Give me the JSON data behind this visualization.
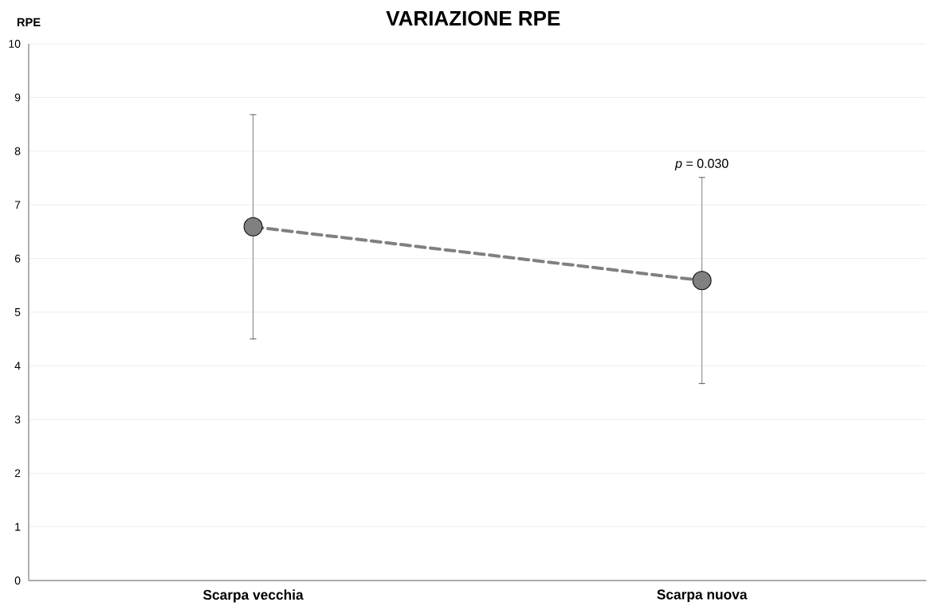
{
  "chart_data": {
    "type": "line",
    "title": "VARIAZIONE RPE",
    "ylabel": "RPE",
    "categories": [
      "Scarpa vecchia",
      "Scarpa nuova"
    ],
    "series": [
      {
        "color": "#808080",
        "values": [
          6.59,
          5.59
        ],
        "errors": [
          2.09,
          1.92
        ]
      }
    ],
    "ylim": [
      0,
      10
    ],
    "yticks": [
      0,
      1,
      2,
      3,
      4,
      5,
      6,
      7,
      8,
      9,
      10
    ],
    "grid": "y",
    "marker": "circle",
    "line_style": "dashed",
    "annotations": [
      "*p* = 0.030"
    ]
  }
}
